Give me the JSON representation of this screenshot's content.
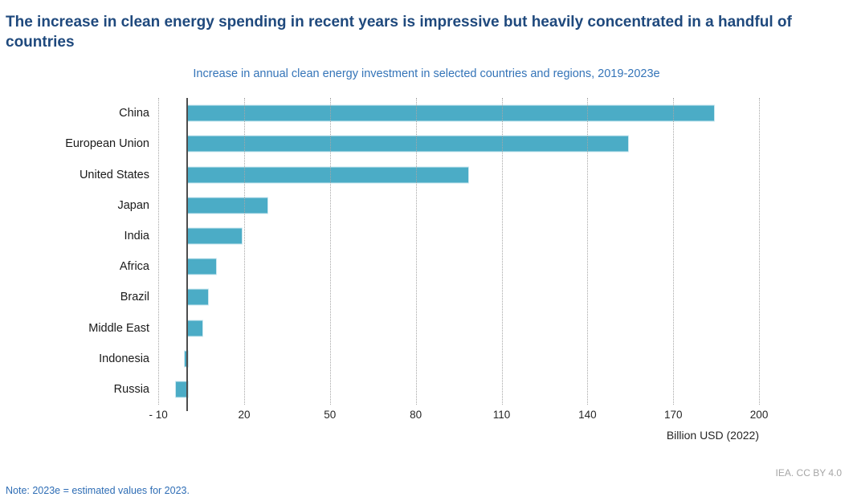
{
  "header": {
    "title": "The increase in clean energy spending in recent years is impressive but heavily concentrated in a handful of countries"
  },
  "chart_data": {
    "type": "bar",
    "orientation": "horizontal",
    "title": "Increase in annual clean energy investment in selected countries and regions, 2019-2023e",
    "xlabel": "Billion USD (2022)",
    "categories": [
      "China",
      "European Union",
      "United States",
      "Japan",
      "India",
      "Africa",
      "Brazil",
      "Middle East",
      "Indonesia",
      "Russia"
    ],
    "values": [
      184,
      154,
      98,
      28,
      19,
      10,
      7,
      5,
      -1,
      -4
    ],
    "unit": "Billion USD (2022)",
    "xlim": [
      -12,
      207
    ],
    "tick_values": [
      -10,
      20,
      50,
      80,
      110,
      140,
      170,
      200
    ],
    "tick_labels": [
      "- 10",
      "20",
      "50",
      "80",
      "110",
      "140",
      "170",
      "200"
    ],
    "grid": "vertical-dotted",
    "legend": "none"
  },
  "colors": {
    "bar": "#4BACC6",
    "bar_edge": "#CDE8F0",
    "title": "#1F497D",
    "subtitle": "#3474B8",
    "note": "#2E6DB5",
    "attribution": "#A6A6A6",
    "axis": "#4d4d4d",
    "gridline": "#a6a6a6"
  },
  "footer": {
    "note": "Note:  2023e = estimated values for 2023.",
    "attribution": "IEA. CC BY 4.0"
  }
}
